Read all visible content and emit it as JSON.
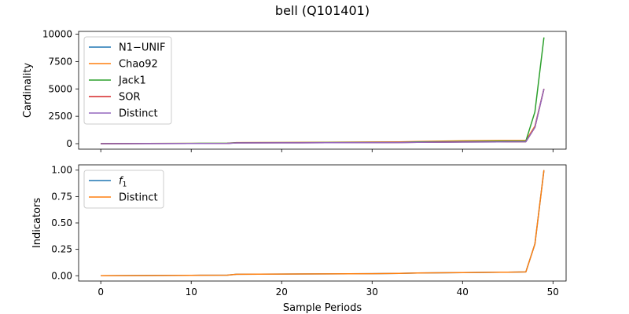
{
  "figure": {
    "title": "bell (Q101401)",
    "xlabel": "Sample Periods"
  },
  "chart_data": [
    {
      "type": "line",
      "ylabel": "Cardinality",
      "xlim": [
        -2.45,
        51.45
      ],
      "ylim": [
        -500,
        10250
      ],
      "xticks": [
        0,
        10,
        20,
        30,
        40,
        50
      ],
      "yticks": [
        0,
        2500,
        5000,
        7500,
        10000
      ],
      "ytick_labels": [
        "0",
        "2500",
        "5000",
        "7500",
        "10000"
      ],
      "show_x_tick_labels": false,
      "grid": false,
      "legend": "top-left",
      "x": [
        0,
        5,
        10,
        14,
        15,
        20,
        25,
        30,
        33,
        35,
        40,
        45,
        47,
        48,
        49
      ],
      "series": [
        {
          "name": "N1−UNIF",
          "color": "#1f77b4",
          "values": [
            0,
            10,
            20,
            30,
            70,
            80,
            90,
            100,
            110,
            130,
            150,
            170,
            180,
            1500,
            5000
          ]
        },
        {
          "name": "Chao92",
          "color": "#ff7f0e",
          "values": [
            0,
            15,
            30,
            40,
            100,
            110,
            130,
            150,
            160,
            200,
            260,
            290,
            300,
            1600,
            5000
          ]
        },
        {
          "name": "Jack1",
          "color": "#2ca02c",
          "values": [
            0,
            15,
            30,
            45,
            90,
            100,
            110,
            120,
            130,
            160,
            200,
            230,
            240,
            2900,
            9700
          ]
        },
        {
          "name": "SOR",
          "color": "#d62728",
          "values": [
            0,
            10,
            20,
            30,
            70,
            80,
            90,
            100,
            110,
            130,
            150,
            170,
            180,
            1500,
            5000
          ]
        },
        {
          "name": "Distinct",
          "color": "#9467bd",
          "values": [
            0,
            10,
            20,
            30,
            70,
            80,
            90,
            100,
            110,
            130,
            150,
            170,
            180,
            1500,
            5000
          ]
        }
      ]
    },
    {
      "type": "line",
      "ylabel": "Indicators",
      "xlim": [
        -2.45,
        51.45
      ],
      "ylim": [
        -0.05,
        1.05
      ],
      "xticks": [
        0,
        10,
        20,
        30,
        40,
        50
      ],
      "xtick_labels": [
        "0",
        "10",
        "20",
        "30",
        "40",
        "50"
      ],
      "yticks": [
        0,
        0.25,
        0.5,
        0.75,
        1.0
      ],
      "ytick_labels": [
        "0.00",
        "0.25",
        "0.50",
        "0.75",
        "1.00"
      ],
      "show_x_tick_labels": true,
      "grid": false,
      "legend": "top-left",
      "x": [
        0,
        5,
        10,
        14,
        15,
        20,
        25,
        30,
        33,
        35,
        40,
        45,
        47,
        48,
        49
      ],
      "series": [
        {
          "name": "f",
          "subscript": "1",
          "color": "#1f77b4",
          "values": [
            0,
            0.002,
            0.004,
            0.006,
            0.014,
            0.016,
            0.018,
            0.02,
            0.022,
            0.026,
            0.03,
            0.034,
            0.036,
            0.3,
            1.0
          ]
        },
        {
          "name": "Distinct",
          "color": "#ff7f0e",
          "values": [
            0,
            0.002,
            0.004,
            0.006,
            0.014,
            0.016,
            0.018,
            0.02,
            0.022,
            0.026,
            0.03,
            0.034,
            0.036,
            0.3,
            1.0
          ]
        }
      ]
    }
  ]
}
